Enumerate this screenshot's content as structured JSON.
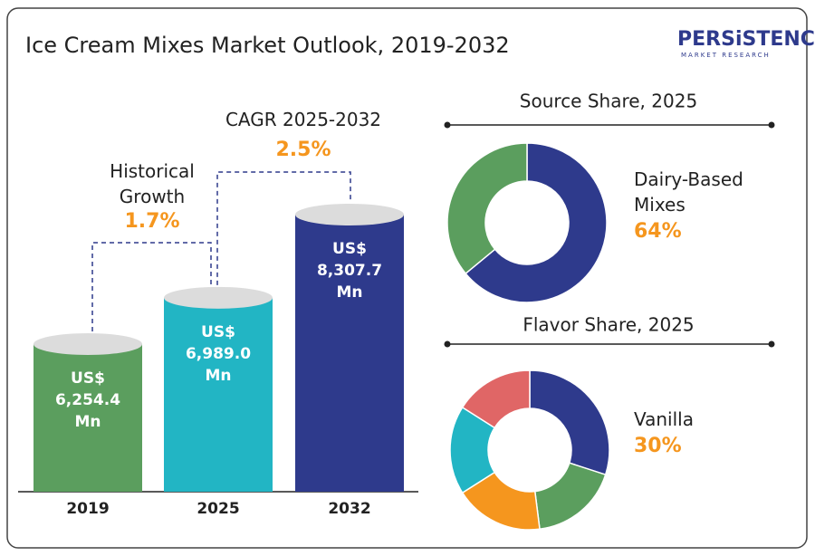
{
  "title": "Ice Cream Mixes Market Outlook, 2019-2032",
  "logo": {
    "name": "PERSiSTENCE",
    "tagline": "MARKET RESEARCH"
  },
  "chart_data": [
    {
      "type": "bar",
      "categories": [
        "2019",
        "2025",
        "2032"
      ],
      "values": [
        6254.4,
        6989.0,
        8307.7
      ],
      "value_labels": [
        "US$ 6,254.4 Mn",
        "US$ 6,989.0 Mn",
        "US$ 8,307.7 Mn"
      ],
      "colors": [
        "#5b9e5e",
        "#22b5c4",
        "#2e3a8c"
      ],
      "annotations": [
        {
          "text": "Historical Growth",
          "value_label": "1.7%"
        },
        {
          "text": "CAGR 2025-2032",
          "value_label": "2.5%"
        }
      ]
    },
    {
      "type": "pie",
      "title": "Source Share, 2025",
      "categories": [
        "Dairy-Based Mixes",
        null
      ],
      "values": [
        64,
        36
      ],
      "value_labels": [
        "64%",
        null
      ],
      "colors": [
        "#2e3a8c",
        "#5b9e5e"
      ]
    },
    {
      "type": "pie",
      "title": "Flavor Share, 2025",
      "categories": [
        "Vanilla",
        null,
        null,
        null,
        null
      ],
      "values": [
        30,
        18,
        18,
        18,
        16
      ],
      "value_labels": [
        "30%",
        null,
        null,
        null,
        null
      ],
      "colors": [
        "#2e3a8c",
        "#5b9e5e",
        "#f5961e",
        "#22b5c4",
        "#e06666"
      ]
    }
  ]
}
